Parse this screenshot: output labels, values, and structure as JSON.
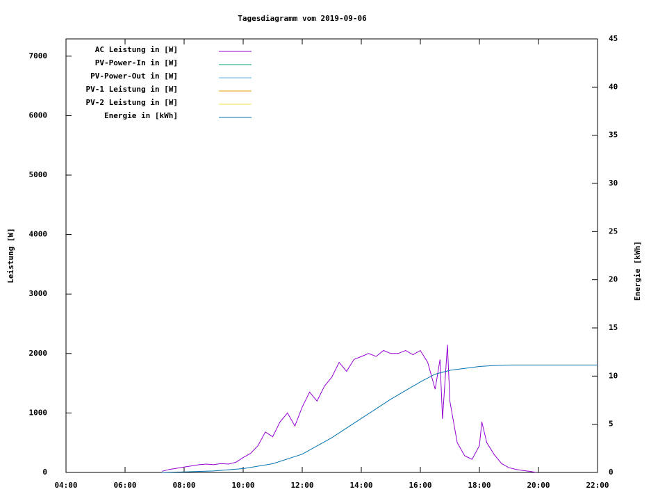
{
  "chart_data": {
    "type": "line",
    "title": "Tagesdiagramm vom 2019-09-06",
    "ylabel": "Leistung [W]",
    "y2label": "Energie [kWh]",
    "xlim": [
      "04:00",
      "22:00"
    ],
    "xticks": [
      "04:00",
      "06:00",
      "08:00",
      "10:00",
      "12:00",
      "14:00",
      "16:00",
      "18:00",
      "20:00",
      "22:00"
    ],
    "ylim": [
      0,
      7290
    ],
    "yticks": [
      0,
      1000,
      2000,
      3000,
      4000,
      5000,
      6000,
      7000
    ],
    "y2lim": [
      0,
      45
    ],
    "y2ticks": [
      0,
      5,
      10,
      15,
      20,
      25,
      30,
      35,
      40,
      45
    ],
    "legend": "top-left",
    "series": [
      {
        "name": "AC Leistung in [W]",
        "color": "#9400d3",
        "x": [
          "07:15",
          "07:30",
          "07:45",
          "08:00",
          "08:15",
          "08:30",
          "08:45",
          "09:00",
          "09:15",
          "09:30",
          "09:45",
          "10:00",
          "10:15",
          "10:30",
          "10:45",
          "11:00",
          "11:15",
          "11:30",
          "11:45",
          "12:00",
          "12:15",
          "12:30",
          "12:45",
          "13:00",
          "13:15",
          "13:30",
          "13:45",
          "14:00",
          "14:15",
          "14:30",
          "14:45",
          "15:00",
          "15:15",
          "15:30",
          "15:45",
          "16:00",
          "16:15",
          "16:30",
          "16:40",
          "16:45",
          "16:55",
          "17:00",
          "17:15",
          "17:30",
          "17:45",
          "18:00",
          "18:05",
          "18:15",
          "18:30",
          "18:45",
          "19:00",
          "19:15",
          "19:30",
          "19:45",
          "19:55"
        ],
        "values": [
          20,
          50,
          70,
          90,
          110,
          130,
          140,
          130,
          150,
          140,
          170,
          250,
          320,
          450,
          680,
          600,
          850,
          1000,
          780,
          1100,
          1350,
          1200,
          1450,
          1600,
          1850,
          1700,
          1900,
          1950,
          2000,
          1950,
          2050,
          2000,
          2000,
          2050,
          1980,
          2050,
          1850,
          1400,
          1900,
          900,
          2150,
          1200,
          500,
          280,
          220,
          450,
          850,
          500,
          300,
          150,
          80,
          50,
          30,
          15,
          0
        ]
      },
      {
        "name": "PV-Power-In in [W]",
        "color": "#009e73"
      },
      {
        "name": "PV-Power-Out in [W]",
        "color": "#56b4e9"
      },
      {
        "name": "PV-1 Leistung in [W]",
        "color": "#e69f00"
      },
      {
        "name": "PV-2 Leistung in [W]",
        "color": "#f0e442"
      },
      {
        "name": "Energie in [kWh]",
        "color": "#0072b2",
        "axis": "y2",
        "x": [
          "07:15",
          "08:00",
          "09:00",
          "10:00",
          "11:00",
          "12:00",
          "13:00",
          "14:00",
          "15:00",
          "16:00",
          "16:30",
          "17:00",
          "17:30",
          "18:00",
          "18:30",
          "19:00",
          "22:00"
        ],
        "values": [
          0,
          0.05,
          0.15,
          0.4,
          0.9,
          1.9,
          3.6,
          5.6,
          7.6,
          9.4,
          10.2,
          10.6,
          10.8,
          11.0,
          11.1,
          11.15,
          11.15
        ]
      }
    ]
  }
}
